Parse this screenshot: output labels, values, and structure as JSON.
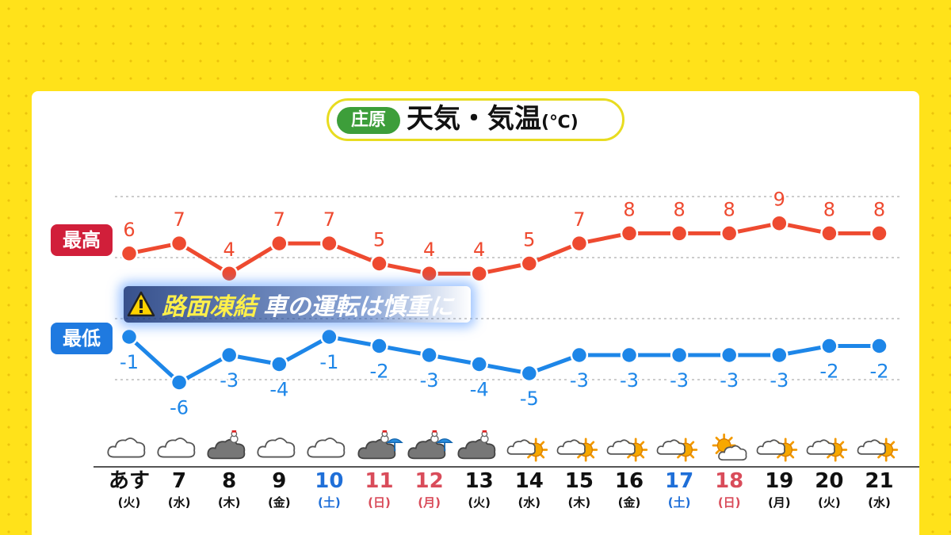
{
  "title": {
    "place": "庄原",
    "main": "天気・気温",
    "unit": "(℃)"
  },
  "labels": {
    "high": "最高",
    "low": "最低"
  },
  "warning": {
    "icon": "warning-triangle-icon",
    "text_highlight": "路面凍結",
    "text_rest": "車の運転は慎重に"
  },
  "colors": {
    "high": "#ee4a30",
    "low": "#1d86e8",
    "saturday": "#1f6fd8",
    "sunday": "#d94c5a",
    "weekday": "#111111",
    "gridline": "#bbbbbb"
  },
  "chart_data": {
    "type": "line",
    "categories": [
      "あす",
      "7",
      "8",
      "9",
      "10",
      "11",
      "12",
      "13",
      "14",
      "15",
      "16",
      "17",
      "18",
      "19",
      "20",
      "21"
    ],
    "weekdays": [
      "(火)",
      "(水)",
      "(木)",
      "(金)",
      "(土)",
      "(日)",
      "(月)",
      "(火)",
      "(水)",
      "(木)",
      "(金)",
      "(土)",
      "(日)",
      "(月)",
      "(火)",
      "(水)"
    ],
    "weekday_type": [
      "weekday",
      "weekday",
      "weekday",
      "weekday",
      "saturday",
      "sunday",
      "sunday",
      "weekday",
      "weekday",
      "weekday",
      "weekday",
      "saturday",
      "sunday",
      "weekday",
      "weekday",
      "weekday"
    ],
    "series": [
      {
        "name": "最高",
        "values": [
          6,
          7,
          4,
          7,
          7,
          5,
          4,
          4,
          5,
          7,
          8,
          8,
          8,
          9,
          8,
          8
        ]
      },
      {
        "name": "最低",
        "values": [
          -1,
          -6,
          -3,
          -4,
          -1,
          -2,
          -3,
          -4,
          -5,
          -3,
          -3,
          -3,
          -3,
          -3,
          -2,
          -2
        ]
      }
    ],
    "weather": [
      "cloudy",
      "cloudy",
      "snow",
      "cloudy",
      "cloudy",
      "snow-then-rain",
      "snow-then-rain",
      "snow",
      "cloudy-then-sunny",
      "cloudy-then-sunny",
      "cloudy-then-sunny",
      "cloudy-then-sunny",
      "sunny-then-cloudy",
      "cloudy-then-sunny",
      "cloudy-then-sunny",
      "cloudy-then-sunny"
    ],
    "grid": true
  }
}
